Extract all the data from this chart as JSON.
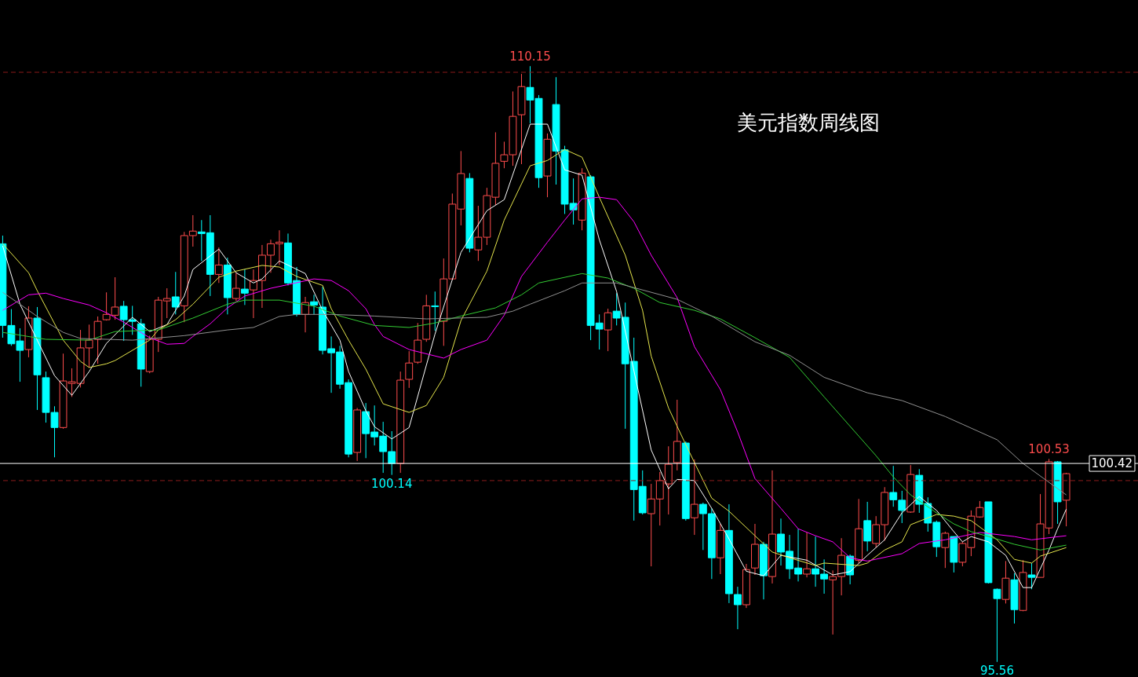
{
  "chart_data": {
    "type": "candlestick",
    "title": "美元指数周线图",
    "categories": [
      null,
      null,
      null,
      null,
      null,
      null,
      null,
      null,
      null,
      null,
      null,
      null,
      null,
      null,
      null,
      null,
      null,
      null,
      null,
      null,
      null,
      null,
      null,
      null,
      null,
      null,
      null,
      null,
      null,
      null,
      null,
      null,
      null,
      null,
      null,
      null,
      null,
      null,
      null,
      null,
      null,
      null,
      null,
      null,
      null,
      null,
      null,
      null,
      null,
      null,
      null,
      null,
      null,
      null,
      null,
      null,
      null,
      null,
      null,
      null,
      null,
      null,
      null,
      null,
      null,
      null,
      null,
      null,
      null,
      null,
      null,
      null,
      null,
      null,
      null,
      null,
      null,
      null,
      null,
      null,
      null,
      null,
      null,
      null,
      null,
      null,
      null,
      null,
      null,
      null,
      null,
      null,
      null,
      null,
      null,
      null,
      null,
      null,
      null,
      null,
      null,
      null,
      null,
      null,
      null,
      null,
      null,
      null,
      null,
      null,
      null,
      null,
      null,
      null,
      null,
      null,
      null,
      null,
      null,
      null,
      null,
      null,
      null,
      null
    ],
    "ohlc": [
      [
        105.8,
        106.0,
        103.5,
        103.8
      ],
      [
        103.8,
        104.2,
        103.3,
        103.35
      ],
      [
        103.42,
        103.73,
        102.42,
        103.19
      ],
      [
        103.21,
        104.27,
        103.02,
        103.98
      ],
      [
        103.98,
        104.25,
        101.73,
        102.59
      ],
      [
        102.52,
        102.67,
        101.42,
        101.67
      ],
      [
        101.67,
        101.82,
        100.57,
        101.3
      ],
      [
        101.3,
        103.11,
        101.27,
        102.44
      ],
      [
        102.38,
        102.75,
        102.05,
        102.42
      ],
      [
        102.38,
        103.69,
        102.28,
        103.25
      ],
      [
        103.25,
        103.82,
        102.77,
        103.44
      ],
      [
        103.46,
        104.02,
        102.86,
        103.9
      ],
      [
        103.94,
        104.61,
        103.92,
        104.07
      ],
      [
        104.05,
        104.98,
        103.94,
        104.25
      ],
      [
        104.27,
        104.4,
        103.42,
        103.94
      ],
      [
        103.94,
        104.28,
        103.57,
        103.9
      ],
      [
        103.84,
        103.96,
        102.3,
        102.73
      ],
      [
        102.67,
        103.55,
        102.63,
        103.46
      ],
      [
        103.46,
        104.5,
        103.15,
        104.42
      ],
      [
        104.4,
        104.71,
        103.98,
        104.46
      ],
      [
        104.5,
        105.11,
        104.07,
        104.25
      ],
      [
        104.28,
        106.09,
        103.88,
        106.0
      ],
      [
        106.0,
        106.5,
        105.73,
        106.11
      ],
      [
        106.09,
        106.38,
        105.38,
        106.05
      ],
      [
        106.07,
        106.5,
        104.52,
        105.05
      ],
      [
        105.05,
        105.71,
        104.84,
        105.28
      ],
      [
        105.28,
        105.46,
        104.07,
        104.48
      ],
      [
        104.46,
        105.09,
        104.4,
        104.71
      ],
      [
        104.69,
        105.17,
        104.3,
        104.59
      ],
      [
        104.67,
        105.17,
        103.98,
        104.9
      ],
      [
        104.9,
        105.77,
        104.23,
        105.52
      ],
      [
        105.52,
        105.9,
        105.09,
        105.8
      ],
      [
        105.8,
        106.13,
        105.28,
        105.84
      ],
      [
        105.82,
        106.05,
        104.78,
        104.84
      ],
      [
        104.9,
        105.23,
        104.02,
        104.07
      ],
      [
        104.07,
        104.5,
        103.63,
        104.36
      ],
      [
        104.38,
        104.55,
        104.07,
        104.3
      ],
      [
        104.25,
        104.75,
        103.09,
        103.19
      ],
      [
        103.23,
        103.53,
        102.15,
        103.13
      ],
      [
        103.15,
        103.3,
        102.25,
        102.36
      ],
      [
        102.4,
        102.48,
        100.57,
        100.65
      ],
      [
        100.69,
        101.78,
        100.48,
        101.73
      ],
      [
        101.69,
        101.9,
        100.55,
        101.15
      ],
      [
        101.19,
        101.84,
        100.86,
        101.07
      ],
      [
        101.09,
        101.44,
        100.19,
        100.71
      ],
      [
        100.71,
        101.21,
        100.14,
        100.42
      ],
      [
        100.42,
        102.67,
        100.19,
        102.46
      ],
      [
        102.48,
        103.17,
        102.27,
        102.88
      ],
      [
        102.9,
        103.86,
        102.86,
        103.44
      ],
      [
        103.46,
        104.55,
        103.4,
        104.28
      ],
      [
        104.28,
        104.63,
        103.67,
        104.26
      ],
      [
        103.9,
        105.44,
        103.3,
        104.94
      ],
      [
        104.94,
        107.03,
        104.92,
        106.77
      ],
      [
        106.65,
        108.07,
        106.25,
        107.52
      ],
      [
        107.4,
        107.53,
        105.59,
        105.69
      ],
      [
        105.65,
        106.73,
        105.38,
        105.96
      ],
      [
        105.96,
        107.17,
        105.77,
        106.98
      ],
      [
        106.94,
        108.53,
        106.75,
        107.77
      ],
      [
        107.82,
        108.3,
        107.65,
        107.98
      ],
      [
        107.98,
        109.53,
        107.71,
        108.92
      ],
      [
        108.96,
        109.96,
        107.75,
        109.65
      ],
      [
        109.63,
        110.15,
        108.75,
        109.32
      ],
      [
        109.36,
        109.44,
        107.17,
        107.42
      ],
      [
        107.46,
        108.5,
        106.94,
        108.36
      ],
      [
        109.21,
        109.88,
        107.25,
        108.07
      ],
      [
        108.1,
        108.2,
        106.53,
        106.77
      ],
      [
        106.79,
        107.4,
        106.27,
        106.63
      ],
      [
        106.38,
        107.65,
        106.13,
        107.53
      ],
      [
        107.44,
        107.48,
        103.44,
        103.8
      ],
      [
        103.86,
        104.07,
        103.21,
        103.71
      ],
      [
        103.69,
        104.21,
        103.17,
        104.11
      ],
      [
        104.15,
        104.59,
        103.8,
        103.98
      ],
      [
        104.0,
        104.36,
        101.27,
        102.86
      ],
      [
        102.92,
        103.5,
        99.02,
        99.78
      ],
      [
        99.86,
        100.25,
        99.17,
        99.21
      ],
      [
        99.19,
        99.92,
        97.9,
        99.55
      ],
      [
        99.55,
        100.21,
        98.9,
        100.0
      ],
      [
        99.92,
        100.84,
        99.17,
        100.4
      ],
      [
        100.44,
        101.98,
        100.25,
        100.96
      ],
      [
        100.92,
        100.96,
        99.02,
        99.07
      ],
      [
        99.09,
        100.52,
        98.67,
        99.42
      ],
      [
        99.42,
        99.46,
        98.3,
        99.19
      ],
      [
        99.19,
        99.32,
        97.59,
        98.11
      ],
      [
        98.11,
        98.94,
        97.71,
        98.78
      ],
      [
        98.78,
        99.42,
        97.0,
        97.23
      ],
      [
        97.21,
        97.4,
        96.36,
        96.96
      ],
      [
        96.96,
        97.96,
        96.88,
        97.82
      ],
      [
        97.86,
        98.94,
        97.69,
        98.44
      ],
      [
        98.44,
        98.5,
        97.09,
        97.67
      ],
      [
        97.65,
        100.25,
        97.48,
        98.69
      ],
      [
        98.69,
        99.07,
        97.92,
        98.25
      ],
      [
        98.27,
        98.67,
        97.59,
        97.84
      ],
      [
        97.86,
        98.82,
        97.53,
        97.71
      ],
      [
        97.71,
        98.73,
        97.63,
        97.84
      ],
      [
        97.84,
        98.63,
        97.4,
        97.71
      ],
      [
        97.71,
        98.07,
        97.23,
        97.59
      ],
      [
        97.57,
        97.8,
        96.23,
        97.65
      ],
      [
        97.65,
        98.59,
        97.19,
        98.17
      ],
      [
        98.15,
        98.19,
        97.46,
        97.69
      ],
      [
        98.05,
        99.55,
        97.98,
        98.82
      ],
      [
        99.02,
        99.48,
        98.27,
        98.52
      ],
      [
        98.46,
        99.13,
        98.36,
        98.92
      ],
      [
        98.92,
        99.84,
        98.53,
        99.71
      ],
      [
        99.71,
        100.36,
        99.36,
        99.53
      ],
      [
        99.52,
        99.75,
        98.96,
        99.27
      ],
      [
        99.23,
        100.38,
        99.21,
        100.15
      ],
      [
        100.13,
        100.28,
        99.21,
        99.42
      ],
      [
        99.44,
        99.59,
        98.75,
        98.96
      ],
      [
        98.98,
        99.02,
        98.13,
        98.38
      ],
      [
        98.36,
        98.75,
        97.86,
        98.71
      ],
      [
        98.63,
        98.63,
        97.75,
        98.0
      ],
      [
        98.0,
        98.5,
        97.9,
        98.46
      ],
      [
        98.36,
        99.27,
        98.15,
        99.13
      ],
      [
        99.11,
        99.5,
        99.09,
        99.34
      ],
      [
        99.48,
        99.48,
        97.48,
        97.5
      ],
      [
        97.34,
        97.36,
        95.56,
        97.11
      ],
      [
        97.09,
        98.03,
        96.99,
        97.61
      ],
      [
        97.57,
        97.73,
        96.5,
        96.84
      ],
      [
        96.82,
        98.05,
        96.8,
        97.75
      ],
      [
        97.69,
        97.98,
        97.34,
        97.63
      ],
      [
        97.63,
        99.67,
        97.63,
        98.94
      ],
      [
        98.84,
        100.53,
        98.69,
        100.46
      ],
      [
        100.46,
        100.48,
        98.94,
        99.48
      ],
      [
        99.52,
        100.19,
        98.88,
        100.17
      ]
    ],
    "series": [
      {
        "type": "line",
        "color": "#ffffff",
        "values": [
          105.75,
          null,
          104.32,
          null,
          103.44,
          null,
          102.57,
          null,
          102.09,
          null,
          102.67,
          null,
          103.36,
          null,
          null,
          104.0,
          null,
          103.65,
          null,
          103.82,
          null,
          104.52,
          105.17,
          null,
          null,
          105.67,
          null,
          105.09,
          null,
          104.84,
          104.94,
          null,
          105.38,
          null,
          null,
          105.07,
          null,
          104.17,
          null,
          103.44,
          102.67,
          null,
          101.71,
          101.32,
          null,
          101.02,
          null,
          101.3,
          null,
          null,
          103.59,
          null,
          null,
          105.59,
          null,
          null,
          106.61,
          null,
          106.88,
          null,
          null,
          108.73,
          null,
          108.73,
          null,
          107.61,
          null,
          107.48,
          null,
          105.9,
          null,
          104.63,
          null,
          102.69,
          null,
          100.75,
          null,
          99.8,
          100.03,
          null,
          100.0,
          null,
          99.32,
          null,
          98.57,
          null,
          97.78,
          null,
          97.67,
          null,
          98.17,
          null,
          null,
          98.05,
          null,
          null,
          97.69,
          null,
          97.77,
          null,
          98.17,
          null,
          98.55,
          null,
          99.21,
          null,
          99.61,
          null,
          99.27,
          null,
          98.75,
          98.5,
          98.63,
          null,
          98.5,
          null,
          98.17,
          null,
          97.38,
          97.38,
          null,
          98.3,
          98.82,
          99.3
        ]
      },
      {
        "type": "line",
        "color": "#e6e64c",
        "values": [
          105.8,
          null,
          null,
          105.09,
          104.65,
          null,
          null,
          103.44,
          null,
          102.92,
          102.77,
          null,
          102.86,
          102.94,
          null,
          null,
          null,
          103.44,
          103.69,
          null,
          103.94,
          null,
          104.32,
          null,
          null,
          104.98,
          null,
          105.13,
          null,
          null,
          105.27,
          null,
          105.23,
          null,
          105.0,
          null,
          null,
          104.78,
          104.21,
          null,
          103.44,
          null,
          102.73,
          null,
          101.88,
          null,
          null,
          101.67,
          null,
          101.84,
          null,
          102.53,
          null,
          103.92,
          null,
          null,
          105.13,
          null,
          106.38,
          null,
          null,
          107.71,
          null,
          107.84,
          null,
          108.11,
          null,
          107.92,
          null,
          106.94,
          null,
          null,
          105.52,
          null,
          104.17,
          103.05,
          null,
          101.78,
          null,
          100.88,
          null,
          null,
          99.57,
          null,
          99.25,
          null,
          null,
          98.65,
          null,
          98.25,
          null,
          98.11,
          null,
          null,
          97.92,
          97.98,
          null,
          null,
          null,
          97.92,
          97.98,
          null,
          98.3,
          null,
          98.5,
          98.92,
          null,
          null,
          99.17,
          null,
          99.13,
          null,
          99.02,
          null,
          null,
          98.55,
          null,
          98.07,
          null,
          97.98,
          98.15,
          null,
          null,
          98.36
        ]
      },
      {
        "type": "line",
        "color": "#ff00ff",
        "values": [
          104.17,
          null,
          null,
          104.55,
          null,
          104.59,
          null,
          104.46,
          null,
          null,
          104.3,
          null,
          104.11,
          null,
          103.88,
          null,
          null,
          103.5,
          null,
          103.34,
          null,
          103.36,
          103.53,
          null,
          103.84,
          null,
          104.23,
          null,
          104.52,
          null,
          null,
          104.71,
          null,
          104.8,
          null,
          null,
          104.94,
          null,
          104.9,
          null,
          104.65,
          null,
          104.21,
          103.82,
          103.53,
          null,
          null,
          103.21,
          null,
          null,
          null,
          103.0,
          null,
          103.21,
          null,
          null,
          103.44,
          null,
          104.05,
          null,
          105.0,
          null,
          null,
          105.84,
          null,
          106.38,
          null,
          106.9,
          null,
          106.94,
          null,
          106.88,
          null,
          106.34,
          null,
          105.52,
          null,
          null,
          104.48,
          null,
          103.28,
          null,
          null,
          102.23,
          null,
          101.19,
          null,
          100.05,
          null,
          null,
          99.32,
          null,
          98.82,
          null,
          98.65,
          null,
          98.5,
          null,
          98.11,
          null,
          98.03,
          null,
          null,
          null,
          98.21,
          null,
          98.46,
          null,
          null,
          98.55,
          null,
          null,
          null,
          98.73,
          null,
          null,
          null,
          98.63,
          null,
          98.55,
          null,
          null,
          null,
          98.65
        ]
      },
      {
        "type": "line",
        "color": "#33cc33",
        "values": [
          103.63,
          null,
          null,
          null,
          null,
          103.46,
          null,
          null,
          null,
          null,
          103.44,
          null,
          null,
          103.65,
          null,
          null,
          null,
          null,
          103.69,
          null,
          null,
          null,
          103.98,
          null,
          null,
          null,
          104.32,
          null,
          104.42,
          null,
          null,
          null,
          104.42,
          null,
          null,
          null,
          104.27,
          null,
          null,
          104.03,
          null,
          null,
          null,
          103.8,
          null,
          null,
          null,
          103.75,
          null,
          null,
          103.86,
          null,
          null,
          104.03,
          null,
          null,
          null,
          104.23,
          null,
          null,
          104.55,
          null,
          104.84,
          null,
          null,
          null,
          null,
          105.07,
          null,
          null,
          104.96,
          null,
          null,
          104.71,
          null,
          null,
          104.36,
          null,
          null,
          null,
          104.17,
          null,
          null,
          103.96,
          null,
          null,
          null,
          103.5,
          null,
          null,
          null,
          103.02,
          null,
          null,
          null,
          102.05,
          null,
          null,
          null,
          101.09,
          null,
          100.61,
          null,
          100.09,
          null,
          99.65,
          null,
          null,
          99.21,
          null,
          98.94,
          null,
          98.75,
          null,
          98.63,
          null,
          null,
          98.44,
          null,
          null,
          98.3,
          null,
          null,
          98.42
        ]
      },
      {
        "type": "line",
        "color": "#909090",
        "values": [
          104.61,
          null,
          104.32,
          null,
          104.02,
          null,
          null,
          103.63,
          null,
          103.48,
          null,
          null,
          null,
          null,
          null,
          103.44,
          null,
          null,
          null,
          null,
          null,
          103.55,
          null,
          null,
          null,
          null,
          103.69,
          null,
          null,
          103.75,
          null,
          null,
          104.02,
          null,
          104.07,
          null,
          null,
          null,
          104.07,
          null,
          null,
          null,
          null,
          104.03,
          null,
          null,
          null,
          null,
          null,
          103.96,
          null,
          null,
          null,
          null,
          null,
          null,
          104.0,
          null,
          null,
          104.15,
          null,
          104.32,
          null,
          null,
          null,
          104.65,
          null,
          104.84,
          null,
          null,
          null,
          104.84,
          null,
          null,
          null,
          null,
          null,
          null,
          104.44,
          null,
          null,
          null,
          104.03,
          null,
          null,
          null,
          null,
          103.4,
          null,
          null,
          null,
          103.07,
          null,
          null,
          null,
          102.53,
          null,
          null,
          null,
          null,
          102.15,
          null,
          null,
          null,
          101.96,
          null,
          null,
          null,
          null,
          101.57,
          null,
          null,
          null,
          null,
          null,
          101.0,
          null,
          null,
          100.42,
          null,
          null,
          null,
          null,
          99.65
        ]
      }
    ],
    "ref_lines": [
      {
        "axis": "y",
        "value": 110,
        "color": "#8b1a1a",
        "line_style": "dashed"
      },
      {
        "axis": "y",
        "value": 100,
        "color": "#8b1a1a",
        "line_style": "dashed"
      },
      {
        "axis": "y",
        "value": 100.42,
        "label": "100.42",
        "color": "#ffffff",
        "line_style": "solid"
      }
    ],
    "annotations": [
      {
        "text": "110.15",
        "y": 110.15
      },
      {
        "text": "100.14",
        "y": 100.14
      },
      {
        "text": "100.53",
        "y": 100.53
      },
      {
        "text": "95.56",
        "y": 95.56
      }
    ],
    "ylim": [
      95.19,
      111.77
    ],
    "tick_labels": false,
    "grid": false
  }
}
